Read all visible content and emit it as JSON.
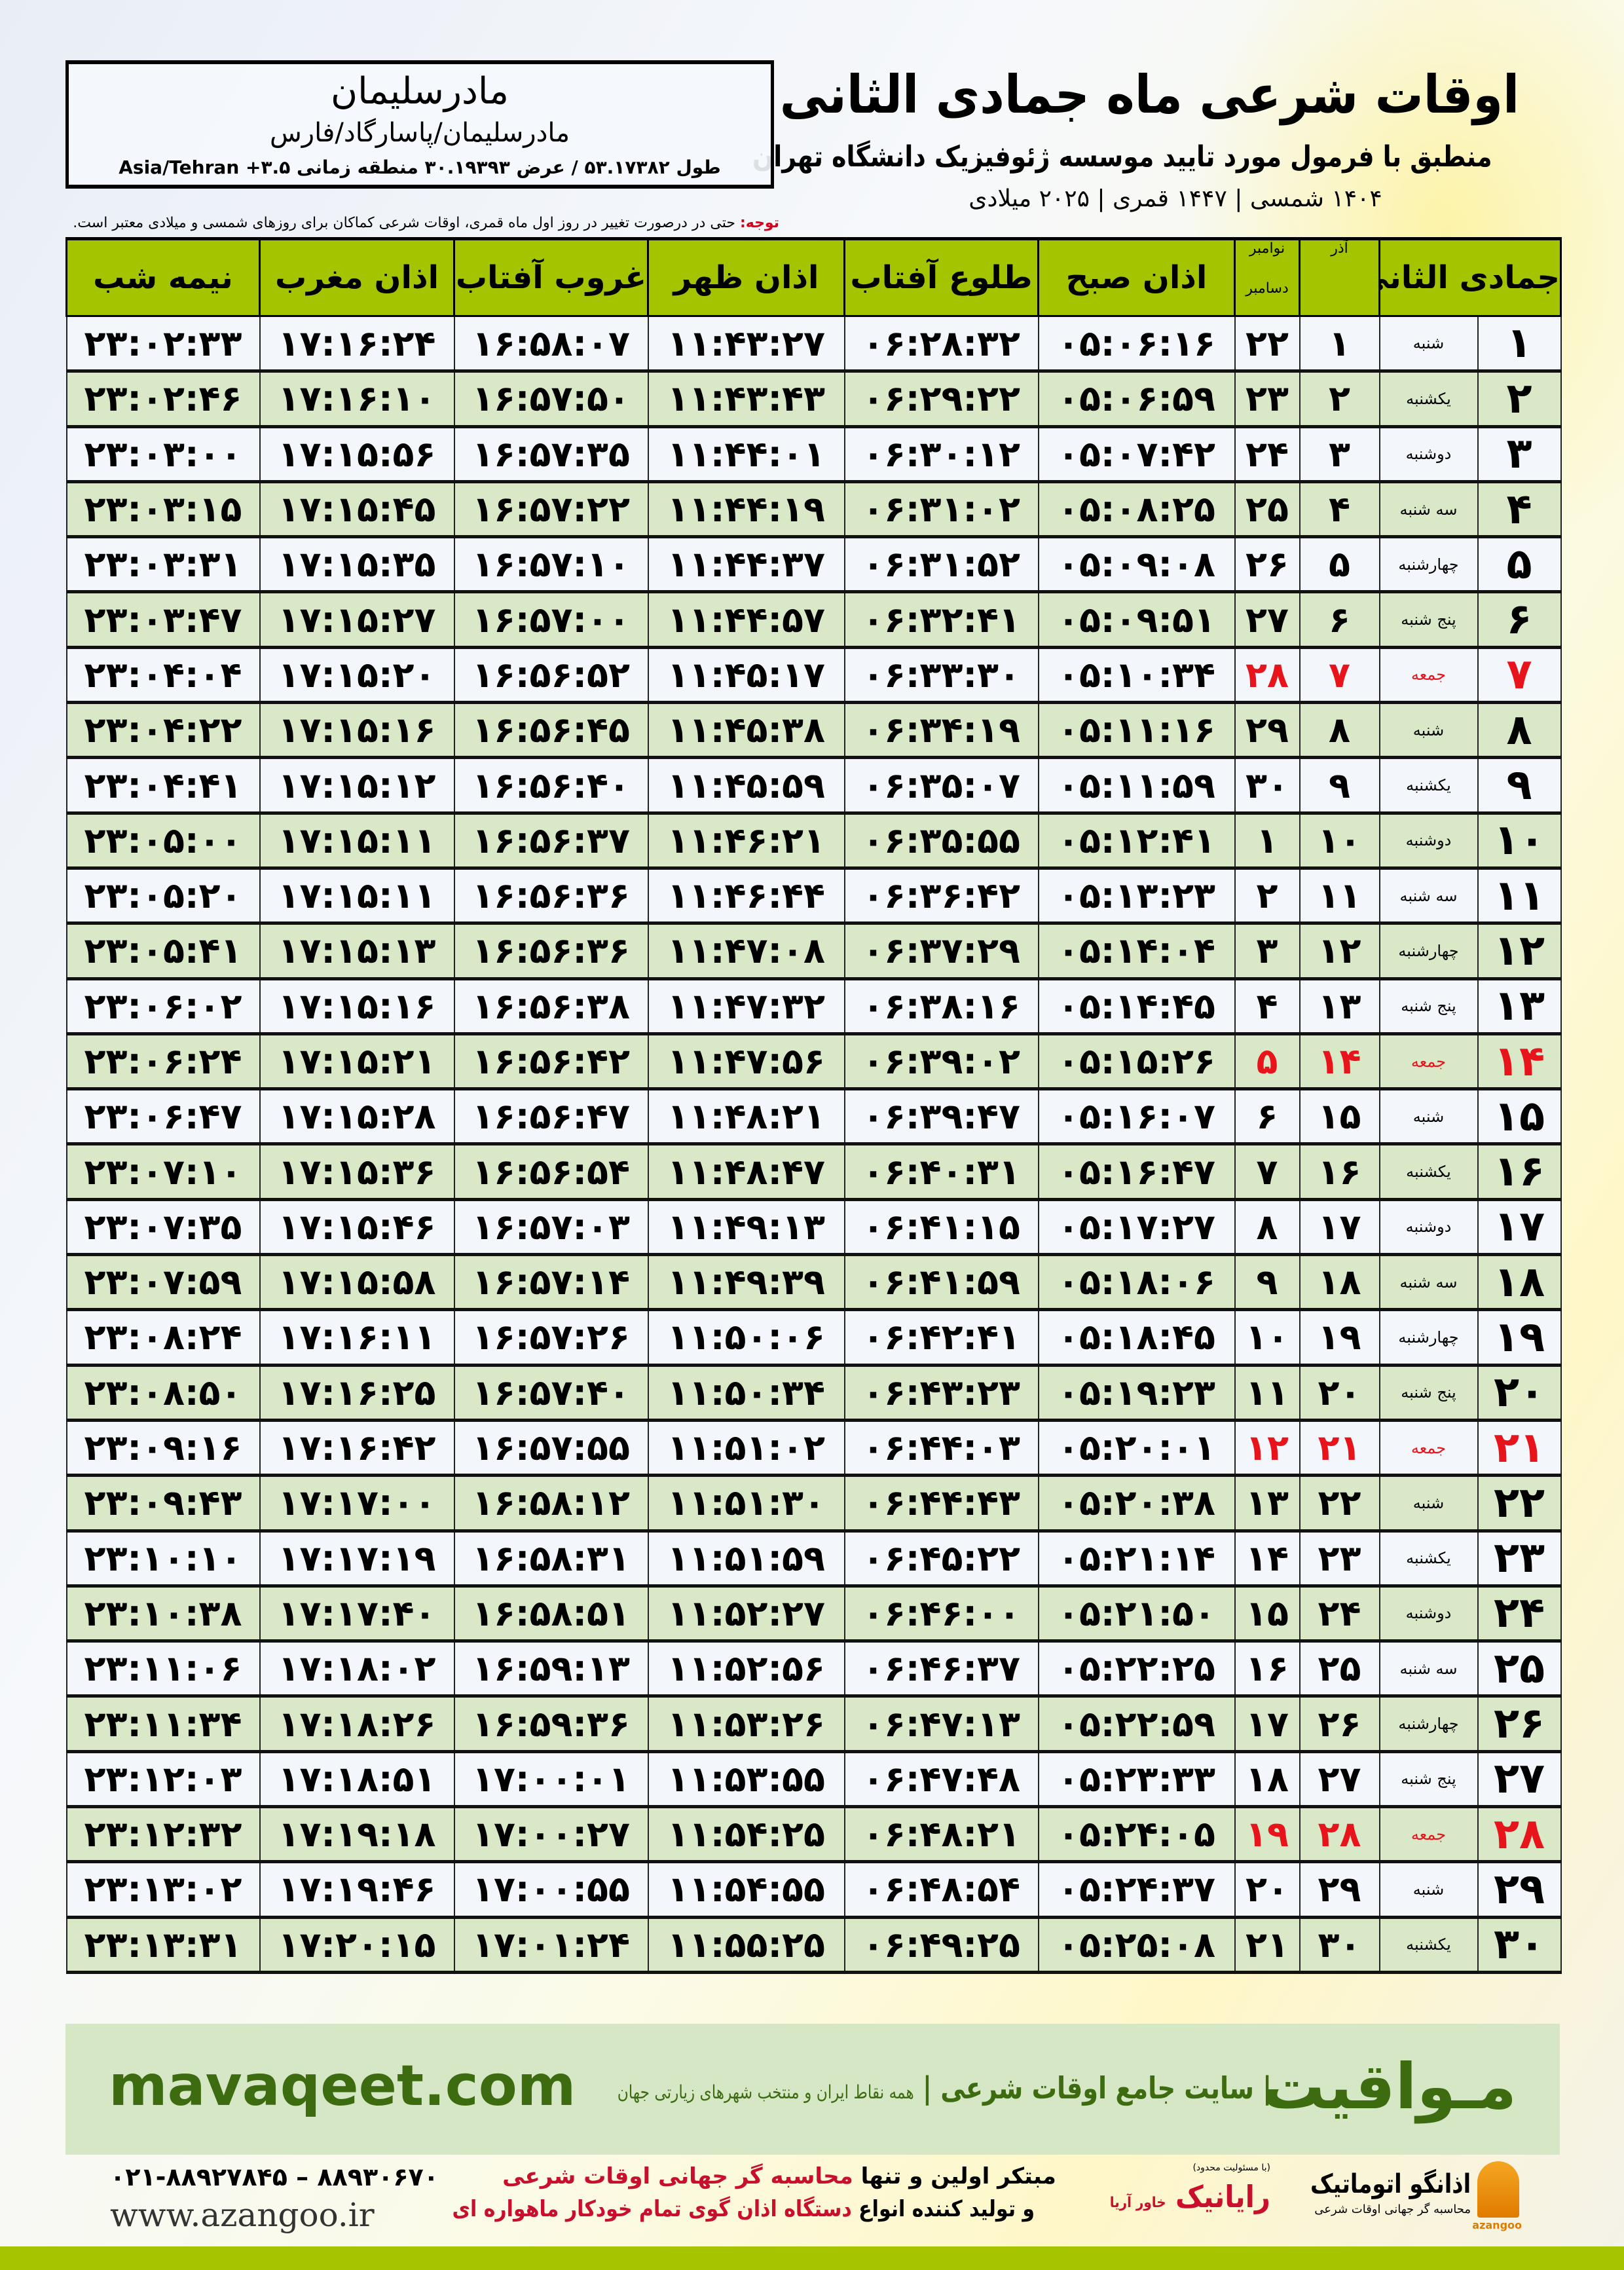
{
  "header": {
    "title": "اوقات شرعی ماه جمادی الثانی",
    "subtitle": "منطبق با فرمول مورد تایید موسسه ژئوفیزیک دانشگاه تهران",
    "years": "۱۴۰۴ شمسی | ۱۴۴۷ قمری | ۲۰۲۵ میلادی"
  },
  "location": {
    "city": "مادرسلیمان",
    "region": "مادرسلیمان/پاسارگاد/فارس",
    "coords": "طول ۵۳.۱۷۳۸۲ / عرض ۳۰.۱۹۳۹۳ منطقه زمانی ۳.۵+ Asia/Tehran"
  },
  "note": {
    "label": "توجه:",
    "text": " حتی در درصورت تغییر در روز اول ماه قمری، اوقات شرعی کماکان برای روزهای شمسی و میلادی معتبر است."
  },
  "table": {
    "headers": {
      "hijri": "جمادی الثانی",
      "azar": "آذر",
      "greg1": "نوامبر",
      "greg2": "دسامبر",
      "sobh": "اذان صبح",
      "tolu": "طلوع آفتاب",
      "zohr": "اذان ظهر",
      "ghorub": "غروب آفتاب",
      "maghrib": "اذان مغرب",
      "nimeh": "نیمه شب"
    },
    "friday_color": "#e8141c",
    "header_color": "#a4c400",
    "row_alt_color": "#d9e8c6",
    "rows": [
      [
        "۱",
        "شنبه",
        "۱",
        "۲۲",
        "۰۵:۰۶:۱۶",
        "۰۶:۲۸:۳۲",
        "۱۱:۴۳:۲۷",
        "۱۶:۵۸:۰۷",
        "۱۷:۱۶:۲۴",
        "۲۳:۰۲:۳۳"
      ],
      [
        "۲",
        "یکشنبه",
        "۲",
        "۲۳",
        "۰۵:۰۶:۵۹",
        "۰۶:۲۹:۲۲",
        "۱۱:۴۳:۴۳",
        "۱۶:۵۷:۵۰",
        "۱۷:۱۶:۱۰",
        "۲۳:۰۲:۴۶"
      ],
      [
        "۳",
        "دوشنبه",
        "۳",
        "۲۴",
        "۰۵:۰۷:۴۲",
        "۰۶:۳۰:۱۲",
        "۱۱:۴۴:۰۱",
        "۱۶:۵۷:۳۵",
        "۱۷:۱۵:۵۶",
        "۲۳:۰۳:۰۰"
      ],
      [
        "۴",
        "سه شنبه",
        "۴",
        "۲۵",
        "۰۵:۰۸:۲۵",
        "۰۶:۳۱:۰۲",
        "۱۱:۴۴:۱۹",
        "۱۶:۵۷:۲۲",
        "۱۷:۱۵:۴۵",
        "۲۳:۰۳:۱۵"
      ],
      [
        "۵",
        "چهارشنبه",
        "۵",
        "۲۶",
        "۰۵:۰۹:۰۸",
        "۰۶:۳۱:۵۲",
        "۱۱:۴۴:۳۷",
        "۱۶:۵۷:۱۰",
        "۱۷:۱۵:۳۵",
        "۲۳:۰۳:۳۱"
      ],
      [
        "۶",
        "پنج شنبه",
        "۶",
        "۲۷",
        "۰۵:۰۹:۵۱",
        "۰۶:۳۲:۴۱",
        "۱۱:۴۴:۵۷",
        "۱۶:۵۷:۰۰",
        "۱۷:۱۵:۲۷",
        "۲۳:۰۳:۴۷"
      ],
      [
        "۷",
        "جمعه",
        "۷",
        "۲۸",
        "۰۵:۱۰:۳۴",
        "۰۶:۳۳:۳۰",
        "۱۱:۴۵:۱۷",
        "۱۶:۵۶:۵۲",
        "۱۷:۱۵:۲۰",
        "۲۳:۰۴:۰۴"
      ],
      [
        "۸",
        "شنبه",
        "۸",
        "۲۹",
        "۰۵:۱۱:۱۶",
        "۰۶:۳۴:۱۹",
        "۱۱:۴۵:۳۸",
        "۱۶:۵۶:۴۵",
        "۱۷:۱۵:۱۶",
        "۲۳:۰۴:۲۲"
      ],
      [
        "۹",
        "یکشنبه",
        "۹",
        "۳۰",
        "۰۵:۱۱:۵۹",
        "۰۶:۳۵:۰۷",
        "۱۱:۴۵:۵۹",
        "۱۶:۵۶:۴۰",
        "۱۷:۱۵:۱۲",
        "۲۳:۰۴:۴۱"
      ],
      [
        "۱۰",
        "دوشنبه",
        "۱۰",
        "۱",
        "۰۵:۱۲:۴۱",
        "۰۶:۳۵:۵۵",
        "۱۱:۴۶:۲۱",
        "۱۶:۵۶:۳۷",
        "۱۷:۱۵:۱۱",
        "۲۳:۰۵:۰۰"
      ],
      [
        "۱۱",
        "سه شنبه",
        "۱۱",
        "۲",
        "۰۵:۱۳:۲۳",
        "۰۶:۳۶:۴۲",
        "۱۱:۴۶:۴۴",
        "۱۶:۵۶:۳۶",
        "۱۷:۱۵:۱۱",
        "۲۳:۰۵:۲۰"
      ],
      [
        "۱۲",
        "چهارشنبه",
        "۱۲",
        "۳",
        "۰۵:۱۴:۰۴",
        "۰۶:۳۷:۲۹",
        "۱۱:۴۷:۰۸",
        "۱۶:۵۶:۳۶",
        "۱۷:۱۵:۱۳",
        "۲۳:۰۵:۴۱"
      ],
      [
        "۱۳",
        "پنج شنبه",
        "۱۳",
        "۴",
        "۰۵:۱۴:۴۵",
        "۰۶:۳۸:۱۶",
        "۱۱:۴۷:۳۲",
        "۱۶:۵۶:۳۸",
        "۱۷:۱۵:۱۶",
        "۲۳:۰۶:۰۲"
      ],
      [
        "۱۴",
        "جمعه",
        "۱۴",
        "۵",
        "۰۵:۱۵:۲۶",
        "۰۶:۳۹:۰۲",
        "۱۱:۴۷:۵۶",
        "۱۶:۵۶:۴۲",
        "۱۷:۱۵:۲۱",
        "۲۳:۰۶:۲۴"
      ],
      [
        "۱۵",
        "شنبه",
        "۱۵",
        "۶",
        "۰۵:۱۶:۰۷",
        "۰۶:۳۹:۴۷",
        "۱۱:۴۸:۲۱",
        "۱۶:۵۶:۴۷",
        "۱۷:۱۵:۲۸",
        "۲۳:۰۶:۴۷"
      ],
      [
        "۱۶",
        "یکشنبه",
        "۱۶",
        "۷",
        "۰۵:۱۶:۴۷",
        "۰۶:۴۰:۳۱",
        "۱۱:۴۸:۴۷",
        "۱۶:۵۶:۵۴",
        "۱۷:۱۵:۳۶",
        "۲۳:۰۷:۱۰"
      ],
      [
        "۱۷",
        "دوشنبه",
        "۱۷",
        "۸",
        "۰۵:۱۷:۲۷",
        "۰۶:۴۱:۱۵",
        "۱۱:۴۹:۱۳",
        "۱۶:۵۷:۰۳",
        "۱۷:۱۵:۴۶",
        "۲۳:۰۷:۳۵"
      ],
      [
        "۱۸",
        "سه شنبه",
        "۱۸",
        "۹",
        "۰۵:۱۸:۰۶",
        "۰۶:۴۱:۵۹",
        "۱۱:۴۹:۳۹",
        "۱۶:۵۷:۱۴",
        "۱۷:۱۵:۵۸",
        "۲۳:۰۷:۵۹"
      ],
      [
        "۱۹",
        "چهارشنبه",
        "۱۹",
        "۱۰",
        "۰۵:۱۸:۴۵",
        "۰۶:۴۲:۴۱",
        "۱۱:۵۰:۰۶",
        "۱۶:۵۷:۲۶",
        "۱۷:۱۶:۱۱",
        "۲۳:۰۸:۲۴"
      ],
      [
        "۲۰",
        "پنج شنبه",
        "۲۰",
        "۱۱",
        "۰۵:۱۹:۲۳",
        "۰۶:۴۳:۲۳",
        "۱۱:۵۰:۳۴",
        "۱۶:۵۷:۴۰",
        "۱۷:۱۶:۲۵",
        "۲۳:۰۸:۵۰"
      ],
      [
        "۲۱",
        "جمعه",
        "۲۱",
        "۱۲",
        "۰۵:۲۰:۰۱",
        "۰۶:۴۴:۰۳",
        "۱۱:۵۱:۰۲",
        "۱۶:۵۷:۵۵",
        "۱۷:۱۶:۴۲",
        "۲۳:۰۹:۱۶"
      ],
      [
        "۲۲",
        "شنبه",
        "۲۲",
        "۱۳",
        "۰۵:۲۰:۳۸",
        "۰۶:۴۴:۴۳",
        "۱۱:۵۱:۳۰",
        "۱۶:۵۸:۱۲",
        "۱۷:۱۷:۰۰",
        "۲۳:۰۹:۴۳"
      ],
      [
        "۲۳",
        "یکشنبه",
        "۲۳",
        "۱۴",
        "۰۵:۲۱:۱۴",
        "۰۶:۴۵:۲۲",
        "۱۱:۵۱:۵۹",
        "۱۶:۵۸:۳۱",
        "۱۷:۱۷:۱۹",
        "۲۳:۱۰:۱۰"
      ],
      [
        "۲۴",
        "دوشنبه",
        "۲۴",
        "۱۵",
        "۰۵:۲۱:۵۰",
        "۰۶:۴۶:۰۰",
        "۱۱:۵۲:۲۷",
        "۱۶:۵۸:۵۱",
        "۱۷:۱۷:۴۰",
        "۲۳:۱۰:۳۸"
      ],
      [
        "۲۵",
        "سه شنبه",
        "۲۵",
        "۱۶",
        "۰۵:۲۲:۲۵",
        "۰۶:۴۶:۳۷",
        "۱۱:۵۲:۵۶",
        "۱۶:۵۹:۱۳",
        "۱۷:۱۸:۰۲",
        "۲۳:۱۱:۰۶"
      ],
      [
        "۲۶",
        "چهارشنبه",
        "۲۶",
        "۱۷",
        "۰۵:۲۲:۵۹",
        "۰۶:۴۷:۱۳",
        "۱۱:۵۳:۲۶",
        "۱۶:۵۹:۳۶",
        "۱۷:۱۸:۲۶",
        "۲۳:۱۱:۳۴"
      ],
      [
        "۲۷",
        "پنج شنبه",
        "۲۷",
        "۱۸",
        "۰۵:۲۳:۳۳",
        "۰۶:۴۷:۴۸",
        "۱۱:۵۳:۵۵",
        "۱۷:۰۰:۰۱",
        "۱۷:۱۸:۵۱",
        "۲۳:۱۲:۰۳"
      ],
      [
        "۲۸",
        "جمعه",
        "۲۸",
        "۱۹",
        "۰۵:۲۴:۰۵",
        "۰۶:۴۸:۲۱",
        "۱۱:۵۴:۲۵",
        "۱۷:۰۰:۲۷",
        "۱۷:۱۹:۱۸",
        "۲۳:۱۲:۳۲"
      ],
      [
        "۲۹",
        "شنبه",
        "۲۹",
        "۲۰",
        "۰۵:۲۴:۳۷",
        "۰۶:۴۸:۵۴",
        "۱۱:۵۴:۵۵",
        "۱۷:۰۰:۵۵",
        "۱۷:۱۹:۴۶",
        "۲۳:۱۳:۰۲"
      ],
      [
        "۳۰",
        "یکشنبه",
        "۳۰",
        "۲۱",
        "۰۵:۲۵:۰۸",
        "۰۶:۴۹:۲۵",
        "۱۱:۵۵:۲۵",
        "۱۷:۰۱:۲۴",
        "۱۷:۲۰:۱۵",
        "۲۳:۱۳:۳۱"
      ]
    ]
  },
  "banner": {
    "brand": "مـواقیت",
    "tagline": "| سایت جامع اوقات شرعی |",
    "tagline_small": "همه نقاط ایران و منتخب شهرهای زیارتی جهان",
    "site": "mavaqeet.com"
  },
  "footer": {
    "phone": "۰۲۱-۸۸۹۲۷۸۴۵ – ۸۸۹۳۰۶۷۰",
    "www": "www.azangoo.ir",
    "promo_1a": "مبتکر اولین و تنها ",
    "promo_1b": "محاسبه گر جهانی اوقات شرعی",
    "promo_2a": "و تولید کننده انواع ",
    "promo_2b": "دستگاه اذان گوی تمام خودکار ماهواره ای",
    "logo_rayanik": "رایانیک",
    "logo_rayanik_sub": "خاور آریا",
    "logo_rayanik_note": "(با مسئولیت محدود)",
    "logo_azangoo": "اذانگو اتوماتیک",
    "logo_azangoo_sub": "محاسبه گر جهانی اوقات شرعی",
    "logo_azangoo_en": "azangoo"
  }
}
